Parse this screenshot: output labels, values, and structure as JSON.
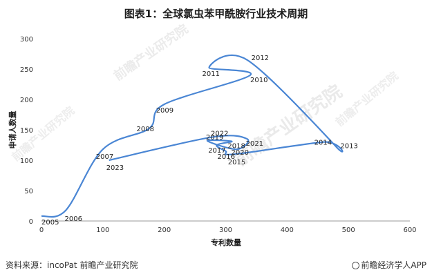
{
  "title": "图表1：全球氯虫苯甲酰胺行业技术周期",
  "source": "资料来源：incoPat 前瞻产业研究院",
  "brand": "前瞻经济学人APP",
  "watermark": "前瞻产业研究院",
  "colors": {
    "line": "#4a86d4",
    "axis": "#999999"
  },
  "chart_data": {
    "type": "line",
    "title": "图表1：全球氯虫苯甲酰胺行业技术周期",
    "xlabel": "专利数量",
    "ylabel": "申请人数量",
    "xlim": [
      0,
      600
    ],
    "ylim": [
      0,
      300
    ],
    "xticks": [
      0,
      100,
      200,
      300,
      400,
      500,
      600
    ],
    "yticks": [
      0,
      50,
      100,
      150,
      200,
      250,
      300
    ],
    "grid": false,
    "points": [
      {
        "label": "2005",
        "x": 0,
        "y": 8
      },
      {
        "label": "2006",
        "x": 40,
        "y": 18
      },
      {
        "label": "2007",
        "x": 100,
        "y": 118
      },
      {
        "label": "2008",
        "x": 175,
        "y": 152
      },
      {
        "label": "2009",
        "x": 200,
        "y": 192
      },
      {
        "label": "2010",
        "x": 340,
        "y": 240
      },
      {
        "label": "2011",
        "x": 273,
        "y": 252
      },
      {
        "label": "2012",
        "x": 335,
        "y": 265
      },
      {
        "label": "2013",
        "x": 480,
        "y": 122
      },
      {
        "label": "2014",
        "x": 460,
        "y": 130
      },
      {
        "label": "2015",
        "x": 315,
        "y": 110
      },
      {
        "label": "2016",
        "x": 300,
        "y": 115
      },
      {
        "label": "2017",
        "x": 285,
        "y": 125
      },
      {
        "label": "2018",
        "x": 310,
        "y": 131
      },
      {
        "label": "2019",
        "x": 270,
        "y": 132
      },
      {
        "label": "2020",
        "x": 318,
        "y": 118
      },
      {
        "label": "2021",
        "x": 335,
        "y": 135
      },
      {
        "label": "2022",
        "x": 278,
        "y": 138
      },
      {
        "label": "2023",
        "x": 110,
        "y": 100
      }
    ]
  }
}
